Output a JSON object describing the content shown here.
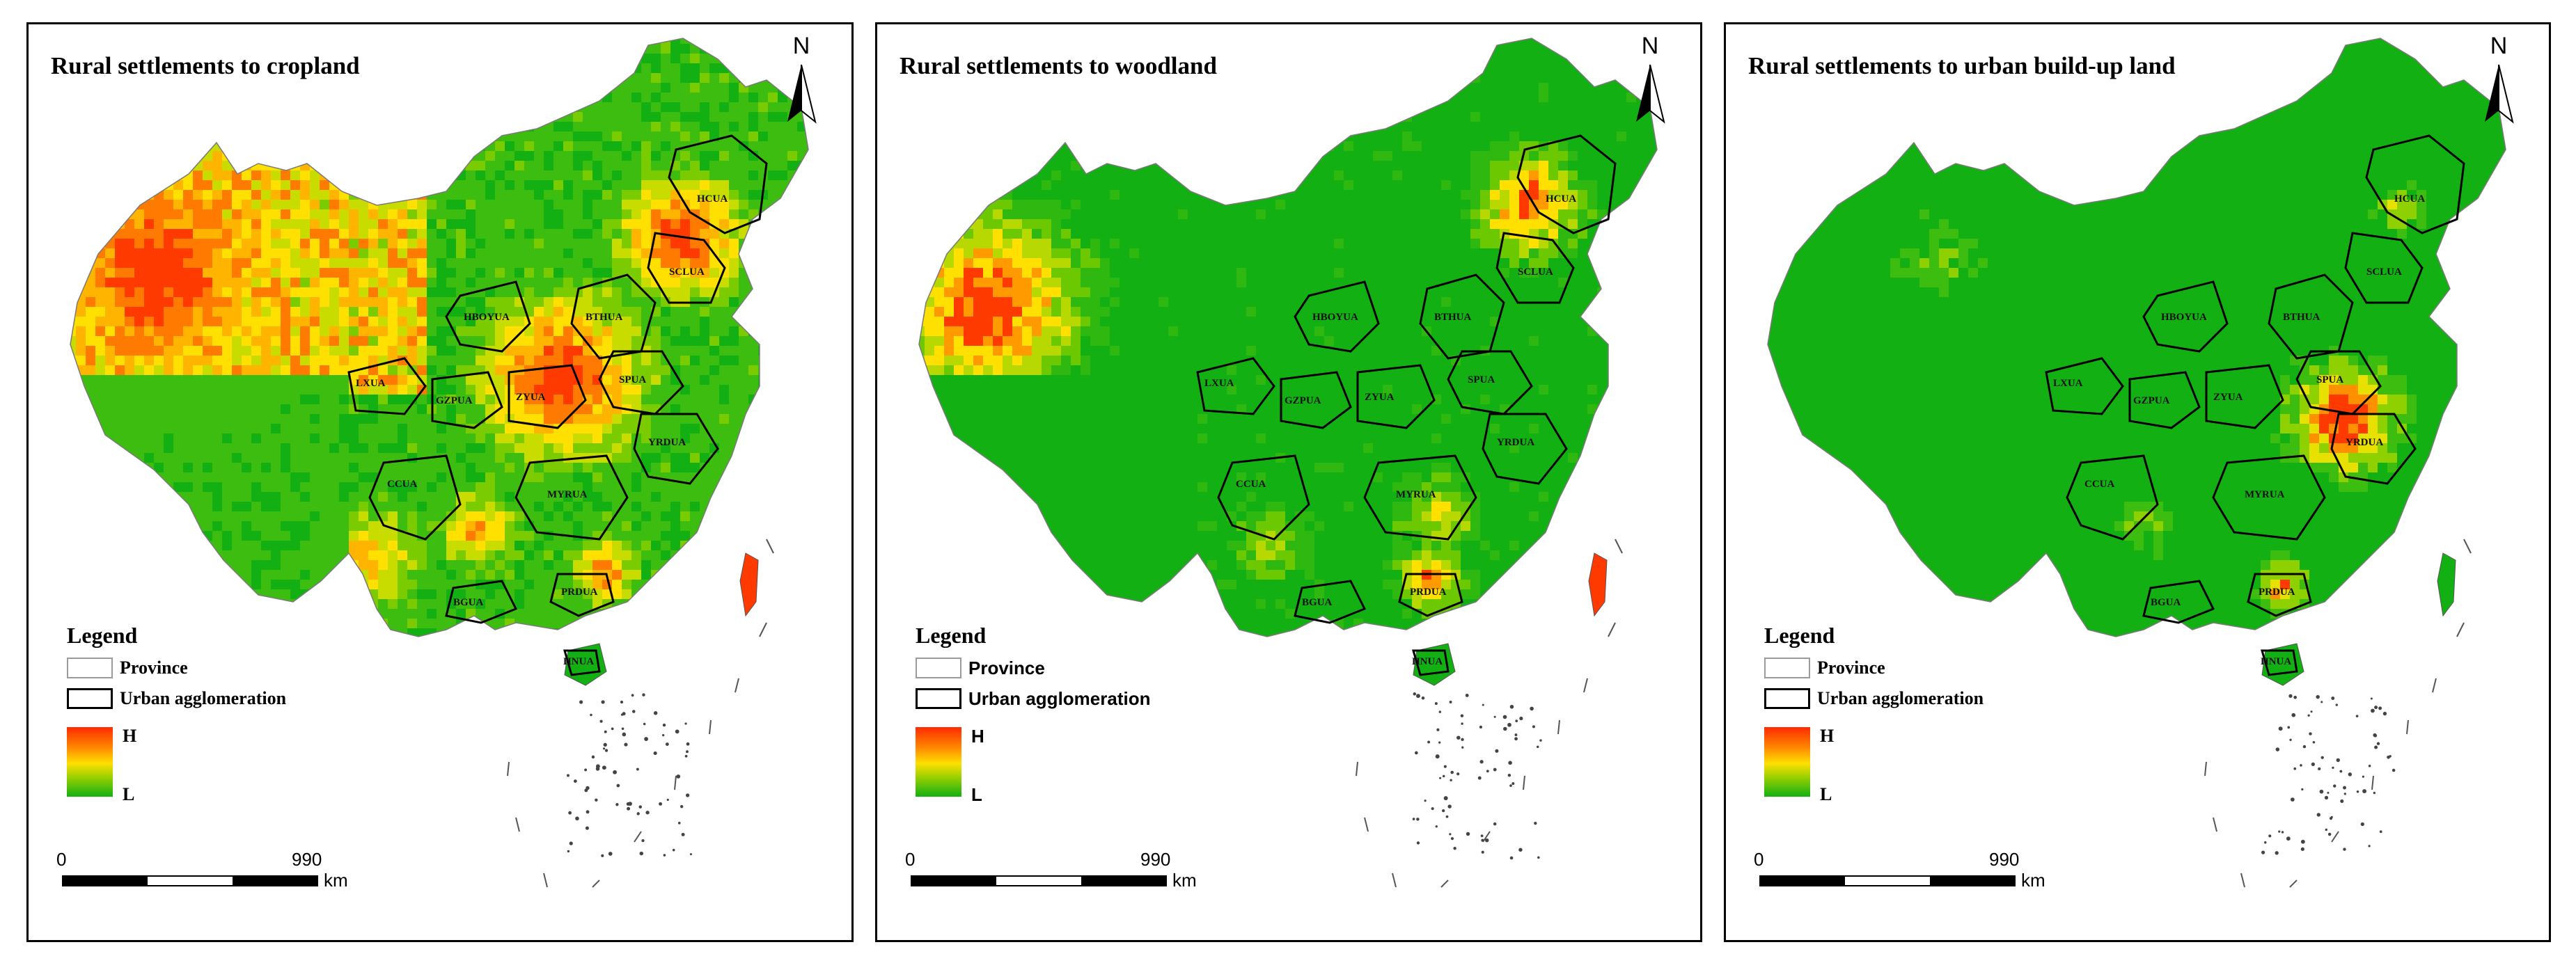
{
  "panels": [
    {
      "title": "Rural settlements to cropland",
      "variant": "cropland"
    },
    {
      "title": "Rural settlements to woodland",
      "variant": "woodland"
    },
    {
      "title": "Rural settlements to urban build-up land",
      "variant": "urban"
    }
  ],
  "north_arrow": {
    "label": "N",
    "icon": "north-arrow-icon"
  },
  "legend": {
    "title": "Legend",
    "province_label": "Province",
    "urban_agglomeration_label": "Urban agglomeration",
    "high_label": "H",
    "low_label": "L",
    "ramp_colors": [
      "#ff2a00",
      "#ff8a00",
      "#ffe000",
      "#9ad000",
      "#12b012"
    ]
  },
  "scale_bar": {
    "start": "0",
    "end": "990",
    "unit": "km"
  },
  "urban_agglomerations": [
    "HCUA",
    "SCLUA",
    "BTHUA",
    "HBOYUA",
    "SPUA",
    "LXUA",
    "GZPUA",
    "ZYUA",
    "YRDUA",
    "CCUA",
    "MYRUA",
    "BGUA",
    "PRDUA",
    "HNUA"
  ],
  "colors": {
    "background": "#ffffff",
    "border": "#000000",
    "high": "#ff2a00",
    "mid": "#ffe000",
    "low": "#12b012"
  }
}
